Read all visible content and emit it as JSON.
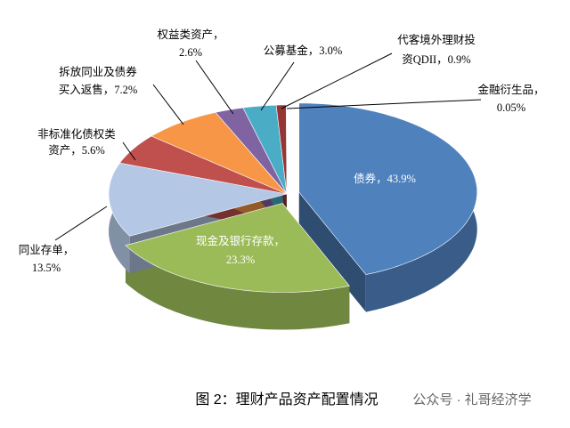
{
  "chart_data": {
    "type": "pie",
    "caption": "图 2：理财产品资产配置情况",
    "watermark": "公众号 · 礼哥经济学",
    "values": [
      43.9,
      23.3,
      13.5,
      5.6,
      7.2,
      2.6,
      3.0,
      0.9,
      0.05
    ],
    "value_labels": [
      [
        "债券，43.9%"
      ],
      [
        "现金及银行存款，",
        "23.3%"
      ],
      [
        "同业存单，",
        "13.5%"
      ],
      [
        "非标准化债权类",
        "资产，5.6%"
      ],
      [
        "拆放同业及债券",
        "买入返售，7.2%"
      ],
      [
        "权益类资产，",
        "2.6%"
      ],
      [
        "公募基金，3.0%"
      ],
      [
        "代客境外理财投",
        "资QDII，0.9%"
      ],
      [
        "金融衍生品，",
        "0.05%"
      ]
    ],
    "colors": [
      "#4f81bd",
      "#9bbb59",
      "#b4c8e6",
      "#c0504d",
      "#f79646",
      "#8064a2",
      "#4bacc6",
      "#943634",
      "#d9d9d9"
    ]
  }
}
